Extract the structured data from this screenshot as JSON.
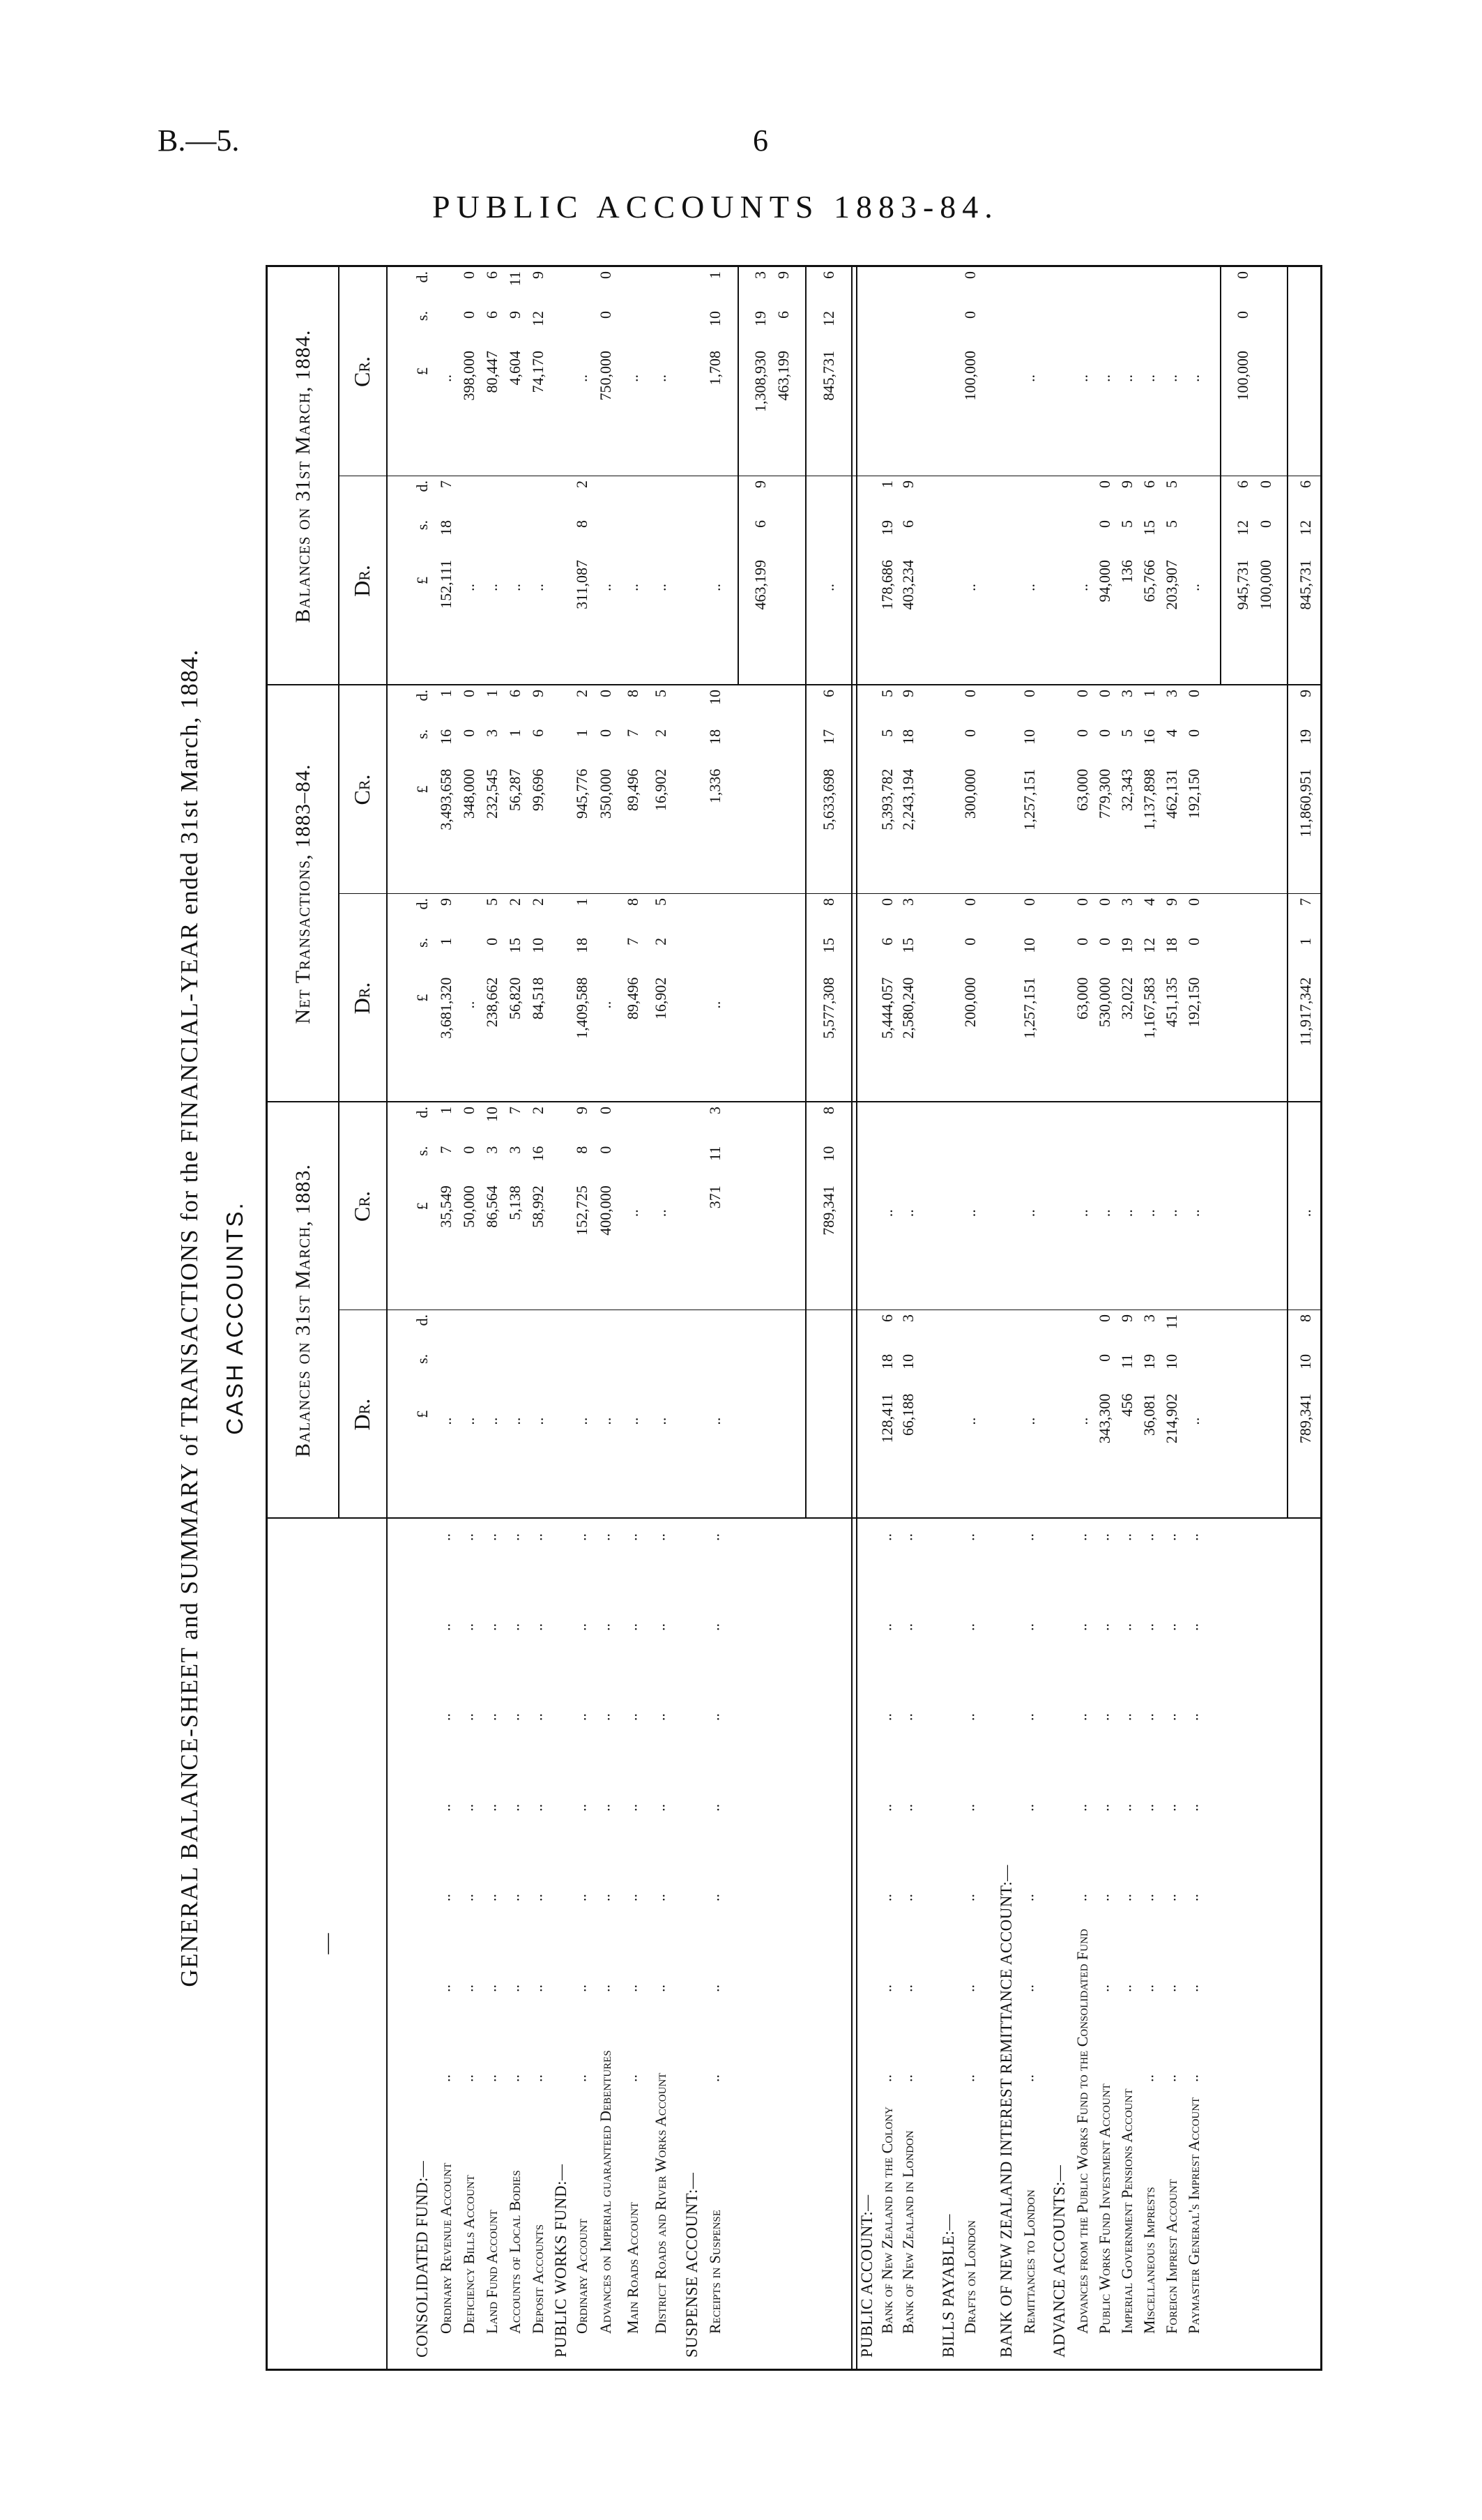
{
  "page": {
    "ref": "B.—5.",
    "page_no": "6",
    "running_title": "PUBLIC ACCOUNTS 1883-84."
  },
  "title": {
    "main": "GENERAL BALANCE-SHEET and SUMMARY of TRANSACTIONS for the FINANCIAL-YEAR ended 31st March, 1884.",
    "sub": "CASH ACCOUNTS."
  },
  "table": {
    "label_header": "—",
    "groups": [
      "Balances on 31st March, 1883.",
      "Net Transactions, 1883–84.",
      "Balances on 31st March, 1884."
    ],
    "dr": "Dr.",
    "cr": "Cr.",
    "units": [
      "£",
      "s.",
      "d."
    ],
    "leader": "..",
    "rows": [
      {
        "kind": "heading",
        "label": "CONSOLIDATED FUND:—",
        "units": true
      },
      {
        "kind": "item",
        "label": "Ordinary Revenue Account",
        "cells": [
          "..",
          [
            "35,549",
            "7",
            "1"
          ],
          [
            "3,681,320",
            "1",
            "9"
          ],
          [
            "3,493,658",
            "16",
            "1"
          ],
          [
            "152,111",
            "18",
            "7"
          ],
          ".."
        ]
      },
      {
        "kind": "item",
        "label": "Deficiency Bills Account",
        "cells": [
          "..",
          [
            "50,000",
            "0",
            "0"
          ],
          "..",
          [
            "348,000",
            "0",
            "0"
          ],
          "..",
          [
            "398,000",
            "0",
            "0"
          ]
        ]
      },
      {
        "kind": "item",
        "label": "Land Fund Account",
        "cells": [
          "..",
          [
            "86,564",
            "3",
            "10"
          ],
          [
            "238,662",
            "0",
            "5"
          ],
          [
            "232,545",
            "3",
            "1"
          ],
          "..",
          [
            "80,447",
            "6",
            "6"
          ]
        ]
      },
      {
        "kind": "item",
        "label": "Accounts of Local Bodies",
        "cells": [
          "..",
          [
            "5,138",
            "3",
            "7"
          ],
          [
            "56,820",
            "15",
            "2"
          ],
          [
            "56,287",
            "1",
            "6"
          ],
          "..",
          [
            "4,604",
            "9",
            "11"
          ]
        ]
      },
      {
        "kind": "item",
        "label": "Deposit Accounts",
        "cells": [
          "..",
          [
            "58,992",
            "16",
            "2"
          ],
          [
            "84,518",
            "10",
            "2"
          ],
          [
            "99,696",
            "6",
            "9"
          ],
          "..",
          [
            "74,170",
            "12",
            "9"
          ]
        ]
      },
      {
        "kind": "heading",
        "label": "PUBLIC WORKS FUND:—"
      },
      {
        "kind": "item",
        "label": "Ordinary Account",
        "cells": [
          "..",
          [
            "152,725",
            "8",
            "9"
          ],
          [
            "1,409,588",
            "18",
            "1"
          ],
          [
            "945,776",
            "1",
            "2"
          ],
          [
            "311,087",
            "8",
            "2"
          ],
          ".."
        ]
      },
      {
        "kind": "item",
        "label": "Advances on Imperial guaranteed Debentures",
        "cells": [
          "..",
          [
            "400,000",
            "0",
            "0"
          ],
          "..",
          [
            "350,000",
            "0",
            "0"
          ],
          "..",
          [
            "750,000",
            "0",
            "0"
          ]
        ]
      },
      {
        "kind": "item",
        "label": "Main Roads Account",
        "cells": [
          "..",
          "..",
          [
            "89,496",
            "7",
            "8"
          ],
          [
            "89,496",
            "7",
            "8"
          ],
          "..",
          ".."
        ]
      },
      {
        "kind": "item",
        "label": "District Roads and River Works Account",
        "cells": [
          "..",
          "..",
          [
            "16,902",
            "2",
            "5"
          ],
          [
            "16,902",
            "2",
            "5"
          ],
          "..",
          ".."
        ]
      },
      {
        "kind": "heading",
        "label": "SUSPENSE ACCOUNT:—"
      },
      {
        "kind": "item",
        "label": "Receipts in Suspense",
        "cells": [
          "..",
          [
            "371",
            "11",
            "3"
          ],
          "..",
          [
            "1,336",
            "18",
            "10"
          ],
          "..",
          [
            "1,708",
            "10",
            "1"
          ]
        ]
      },
      {
        "kind": "subtotal",
        "cells": [
          null,
          null,
          null,
          null,
          [
            [
              "463,199",
              "6",
              "9"
            ]
          ],
          [
            [
              "1,308,930",
              "19",
              "3"
            ],
            [
              "463,199",
              "6",
              "9"
            ]
          ]
        ]
      },
      {
        "kind": "total",
        "cells": [
          null,
          [
            "789,341",
            "10",
            "8"
          ],
          [
            "5,577,308",
            "15",
            "8"
          ],
          [
            "5,633,698",
            "17",
            "6"
          ],
          "..",
          [
            "845,731",
            "12",
            "6"
          ]
        ]
      },
      {
        "kind": "heading",
        "label": "PUBLIC ACCOUNT:—"
      },
      {
        "kind": "item",
        "label": "Bank of New Zealand in the Colony",
        "cells": [
          [
            "128,411",
            "18",
            "6"
          ],
          "..",
          [
            "5,444,057",
            "6",
            "0"
          ],
          [
            "5,393,782",
            "5",
            "5"
          ],
          [
            "178,686",
            "19",
            "1"
          ],
          null
        ]
      },
      {
        "kind": "item",
        "label": "Bank of New Zealand in London",
        "cells": [
          [
            "66,188",
            "10",
            "3"
          ],
          "..",
          [
            "2,580,240",
            "15",
            "3"
          ],
          [
            "2,243,194",
            "18",
            "9"
          ],
          [
            "403,234",
            "6",
            "9"
          ],
          null
        ]
      },
      {
        "kind": "heading",
        "label": "BILLS PAYABLE:—"
      },
      {
        "kind": "item",
        "label": "Drafts on London",
        "cells": [
          "..",
          "..",
          [
            "200,000",
            "0",
            "0"
          ],
          [
            "300,000",
            "0",
            "0"
          ],
          "..",
          [
            "100,000",
            "0",
            "0"
          ]
        ]
      },
      {
        "kind": "heading",
        "label": "BANK OF NEW ZEALAND INTEREST REMITTANCE ACCOUNT:—"
      },
      {
        "kind": "item",
        "label": "Remittances to London",
        "cells": [
          "..",
          "..",
          [
            "1,257,151",
            "10",
            "0"
          ],
          [
            "1,257,151",
            "10",
            "0"
          ],
          "..",
          ".."
        ]
      },
      {
        "kind": "heading",
        "label": "ADVANCE ACCOUNTS:—"
      },
      {
        "kind": "item",
        "label": "Advances from the Public Works Fund to the Consolidated Fund",
        "cells": [
          "..",
          "..",
          [
            "63,000",
            "0",
            "0"
          ],
          [
            "63,000",
            "0",
            "0"
          ],
          "..",
          ".."
        ]
      },
      {
        "kind": "item",
        "label": "Public Works Fund Investment Account",
        "cells": [
          [
            "343,300",
            "0",
            "0"
          ],
          "..",
          [
            "530,000",
            "0",
            "0"
          ],
          [
            "779,300",
            "0",
            "0"
          ],
          [
            "94,000",
            "0",
            "0"
          ],
          ".."
        ]
      },
      {
        "kind": "item",
        "label": "Imperial Government Pensions Account",
        "cells": [
          [
            "456",
            "11",
            "9"
          ],
          "..",
          [
            "32,022",
            "19",
            "3"
          ],
          [
            "32,343",
            "5",
            "3"
          ],
          [
            "136",
            "5",
            "9"
          ],
          ".."
        ]
      },
      {
        "kind": "item",
        "label": "Miscellaneous Imprests",
        "cells": [
          [
            "36,081",
            "19",
            "3"
          ],
          "..",
          [
            "1,167,583",
            "12",
            "4"
          ],
          [
            "1,137,898",
            "16",
            "1"
          ],
          [
            "65,766",
            "15",
            "6"
          ],
          ".."
        ]
      },
      {
        "kind": "item",
        "label": "Foreign Imprest Account",
        "cells": [
          [
            "214,902",
            "10",
            "11"
          ],
          "..",
          [
            "451,135",
            "18",
            "9"
          ],
          [
            "462,131",
            "4",
            "3"
          ],
          [
            "203,907",
            "5",
            "5"
          ],
          ".."
        ]
      },
      {
        "kind": "item",
        "label": "Paymaster General's Imprest Account",
        "cells": [
          "..",
          "..",
          [
            "192,150",
            "0",
            "0"
          ],
          [
            "192,150",
            "0",
            "0"
          ],
          "..",
          ".."
        ]
      },
      {
        "kind": "subtotal",
        "cells": [
          null,
          null,
          null,
          null,
          [
            [
              "945,731",
              "12",
              "6"
            ],
            [
              "100,000",
              "0",
              "0"
            ]
          ],
          [
            [
              "100,000",
              "0",
              "0"
            ]
          ]
        ]
      },
      {
        "kind": "total",
        "cells": [
          [
            "789,341",
            "10",
            "8"
          ],
          "..",
          [
            "11,917,342",
            "1",
            "7"
          ],
          [
            "11,860,951",
            "19",
            "9"
          ],
          [
            "845,731",
            "12",
            "6"
          ],
          null
        ]
      }
    ]
  }
}
